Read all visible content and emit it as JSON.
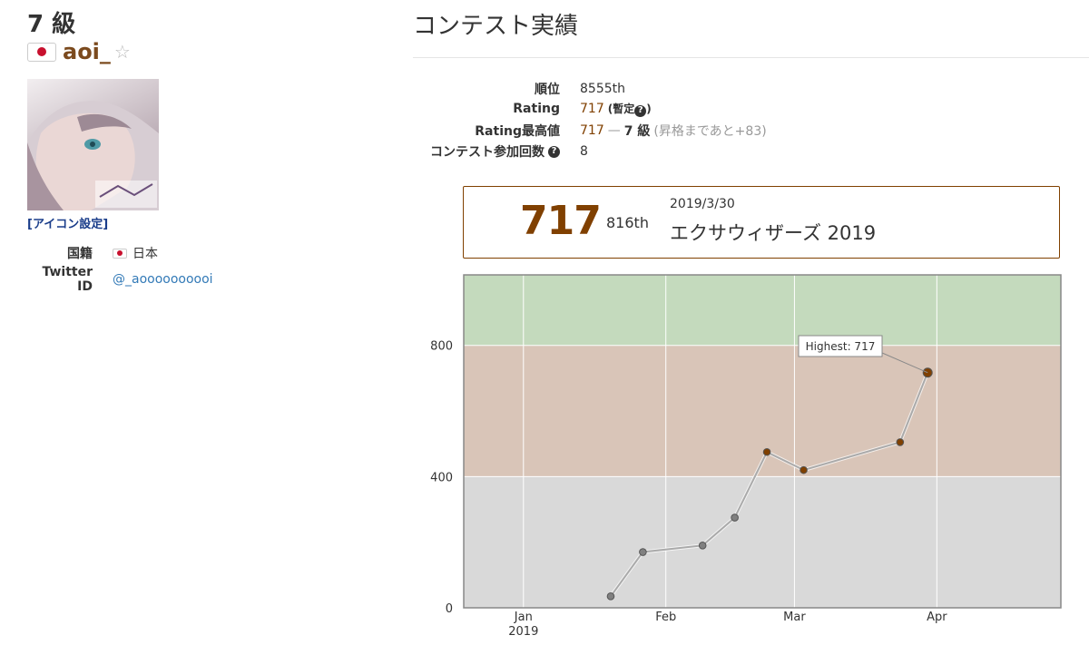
{
  "profile": {
    "rank_title": "7 級",
    "username": "aoi_",
    "icon_settings_label": "[アイコン設定]",
    "info": [
      {
        "label": "国籍",
        "value": "日本",
        "has_flag": true
      },
      {
        "label": "Twitter ID",
        "value": "@_aoooooooooi",
        "link": true
      }
    ]
  },
  "contest": {
    "section_title": "コンテスト実績",
    "stats": {
      "rank_label": "順位",
      "rank_value": "8555th",
      "rating_label": "Rating",
      "rating_value": "717",
      "rating_note": "(暫定",
      "rating_note_end": ")",
      "highest_label": "Rating最高値",
      "highest_value": "717",
      "highest_sep": "—",
      "highest_grade": "7 級",
      "highest_note": "(昇格まであと+83)",
      "count_label": "コンテスト参加回数",
      "count_value": "8"
    },
    "latest": {
      "performance": "717",
      "rank": "816th",
      "date": "2019/3/30",
      "contest_name": "エクサウィザーズ 2019"
    }
  },
  "colors": {
    "brown": "#804000",
    "band_green": "#c4dabd",
    "band_brown": "#d9c5b8",
    "band_gray": "#d9d9d9",
    "line": "#aaaaaa"
  },
  "chart_data": {
    "type": "line",
    "title": "",
    "xlabel": "",
    "ylabel": "",
    "x_ticks": [
      {
        "date": "2019-01-01",
        "label": "Jan",
        "sublabel": "2019"
      },
      {
        "date": "2019-02-01",
        "label": "Feb"
      },
      {
        "date": "2019-03-01",
        "label": "Mar"
      },
      {
        "date": "2019-04-01",
        "label": "Apr"
      }
    ],
    "x_range": [
      "2018-12-19",
      "2019-04-28"
    ],
    "y_ticks": [
      0,
      400,
      800
    ],
    "ylim": [
      0,
      1015
    ],
    "grid": true,
    "bands": [
      {
        "from": 0,
        "to": 400,
        "color": "#d9d9d9"
      },
      {
        "from": 400,
        "to": 800,
        "color": "#d9c5b8"
      },
      {
        "from": 800,
        "to": 1015,
        "color": "#c4dabd"
      }
    ],
    "series": [
      {
        "points": [
          {
            "x": "2019-01-20",
            "y": 35
          },
          {
            "x": "2019-01-27",
            "y": 170
          },
          {
            "x": "2019-02-09",
            "y": 190
          },
          {
            "x": "2019-02-16",
            "y": 275
          },
          {
            "x": "2019-02-23",
            "y": 475
          },
          {
            "x": "2019-03-03",
            "y": 420
          },
          {
            "x": "2019-03-24",
            "y": 505
          },
          {
            "x": "2019-03-30",
            "y": 717
          }
        ]
      }
    ],
    "annotation": {
      "text": "Highest: 717",
      "x": "2019-03-30",
      "y": 717
    }
  }
}
